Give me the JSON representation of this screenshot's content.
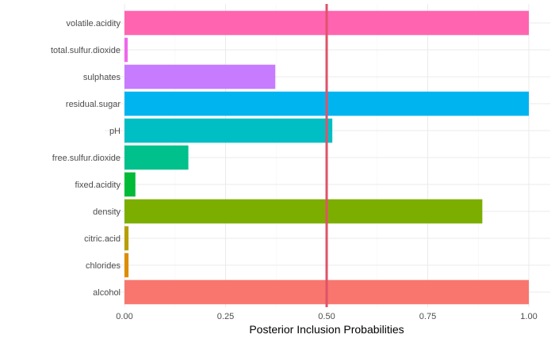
{
  "chart_data": {
    "type": "bar",
    "orientation": "horizontal",
    "categories": [
      "alcohol",
      "chlorides",
      "citric.acid",
      "density",
      "fixed.acidity",
      "free.sulfur.dioxide",
      "pH",
      "residual.sugar",
      "sulphates",
      "total.sulfur.dioxide",
      "volatile.acidity"
    ],
    "values": [
      1.0,
      0.01,
      0.01,
      0.885,
      0.027,
      0.158,
      0.514,
      1.0,
      0.373,
      0.008,
      1.0
    ],
    "colors": [
      "#F8766D",
      "#DE8C00",
      "#B79F00",
      "#7CAE00",
      "#00BA38",
      "#00C08B",
      "#00BFC4",
      "#00B4F0",
      "#C77CFF",
      "#EF67EB",
      "#FF64B0"
    ],
    "xlim": [
      0,
      1
    ],
    "x_ticks": [
      0,
      0.25,
      0.5,
      0.75,
      1.0
    ],
    "x_tick_labels": [
      "0.00",
      "0.25",
      "0.50",
      "0.75",
      "1.00"
    ],
    "xlabel": "Posterior Inclusion Probabilities",
    "ylabel": "",
    "reference_line": {
      "value": 0.5,
      "color": "#E0526A"
    },
    "grid": true,
    "legend": "none"
  }
}
